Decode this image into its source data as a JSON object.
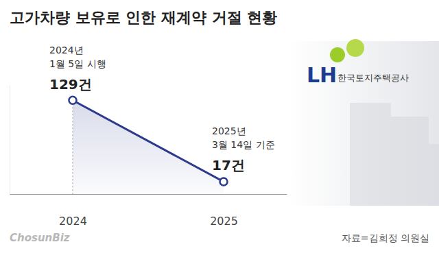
{
  "chart_data": {
    "type": "line",
    "title": "고가차량 보유로 인한 재계약 거절 현황",
    "categories": [
      "2024",
      "2025"
    ],
    "values": [
      129,
      17
    ],
    "value_labels": [
      "129건",
      "17건"
    ],
    "data_labels": true,
    "annotations": [
      [
        "2024년",
        "1월 5일 시행"
      ],
      [
        "2025년",
        "3월 14일 기준"
      ]
    ],
    "color": "#2b3a8c",
    "marker": "circle",
    "ylim": [
      0,
      150
    ],
    "yticks": [
      0
    ],
    "grid": false,
    "tick_labels": "x",
    "source": "자료=김희정 의원실",
    "credit": "ChosunBiz",
    "logo": [
      "LH",
      "한국토지주택공사"
    ]
  }
}
